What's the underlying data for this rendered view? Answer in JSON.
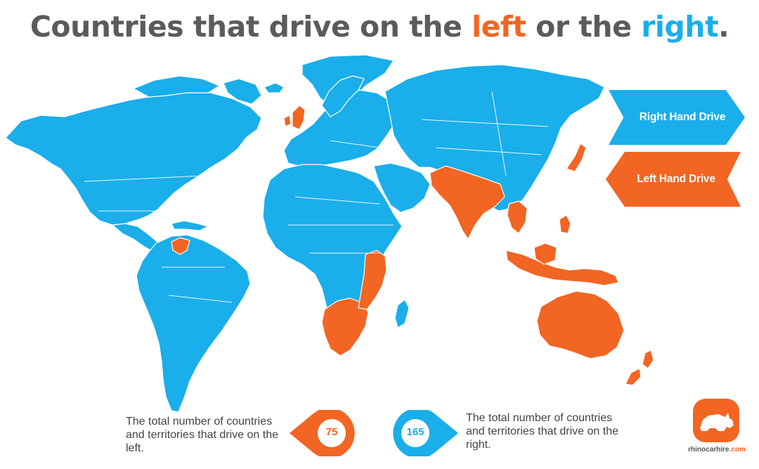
{
  "title": {
    "prefix": "Countries that drive on the ",
    "left_word": "left",
    "middle": " or the ",
    "right_word": "right",
    "suffix": "."
  },
  "legend": {
    "right_label": "Right Hand Drive",
    "left_label": "Left Hand Drive"
  },
  "stats": {
    "left_count": "75",
    "left_text": "The total number of countries and territories that drive on the left.",
    "right_count": "165",
    "right_text": "The total number of countries and territories that drive on the right."
  },
  "brand": {
    "name": "rhinocarhire",
    "tld": ".com",
    "logo_icon": "rhino-icon"
  },
  "colors": {
    "right_drive": "#1aaeea",
    "left_drive": "#f26522",
    "title_text": "#5b5b5b",
    "body_text": "#444444"
  }
}
